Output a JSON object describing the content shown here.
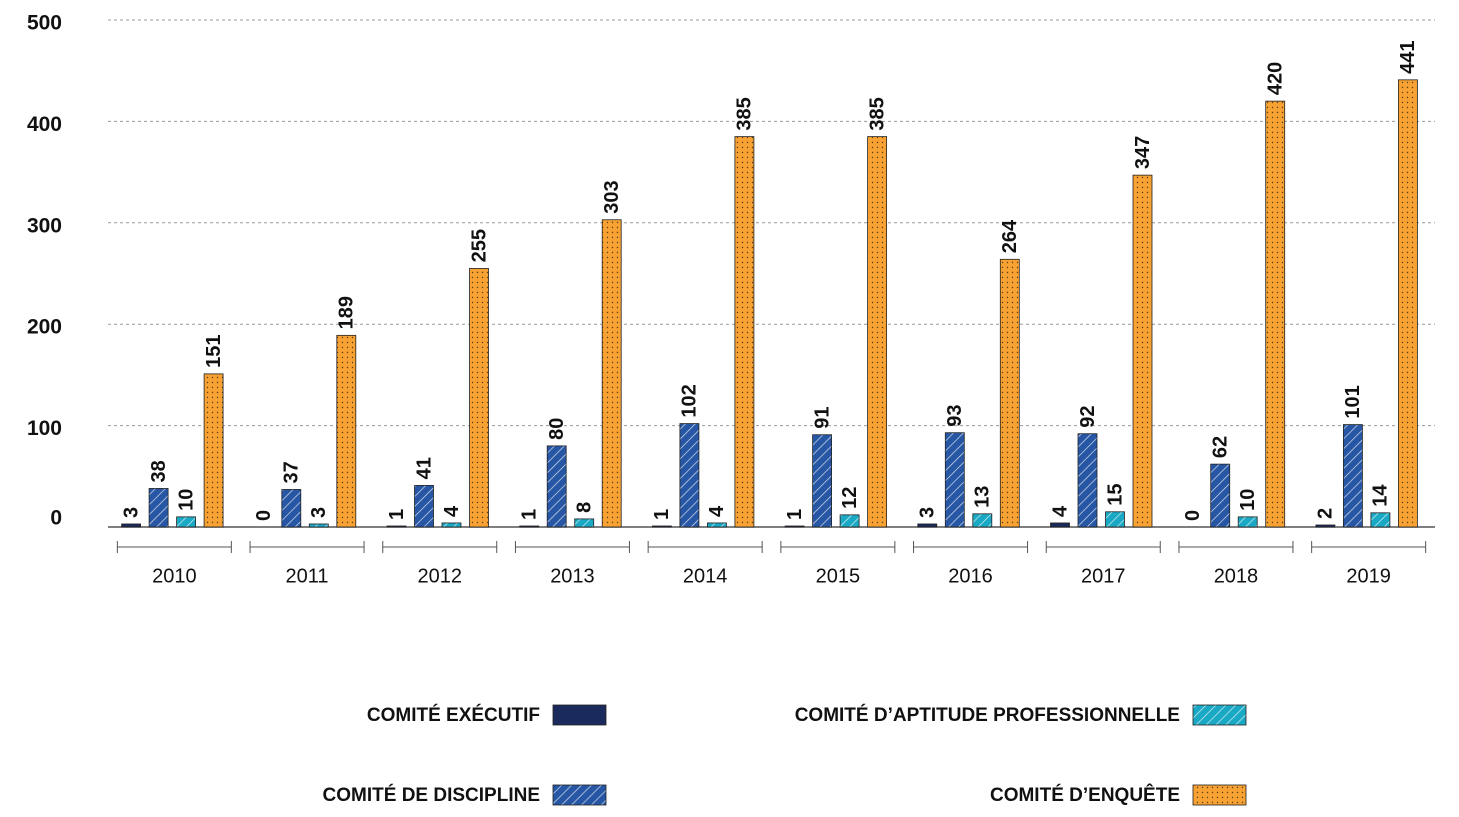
{
  "chart_data": {
    "type": "bar",
    "categories": [
      "2010",
      "2011",
      "2012",
      "2013",
      "2014",
      "2015",
      "2016",
      "2017",
      "2018",
      "2019"
    ],
    "series": [
      {
        "name": "COMITÉ EXÉCUTIF",
        "color": "#1b2a5c",
        "pattern": "solid",
        "values": [
          3,
          0,
          1,
          1,
          1,
          1,
          3,
          4,
          0,
          2
        ]
      },
      {
        "name": "COMITÉ DE DISCIPLINE",
        "color": "#2757a4",
        "pattern": "hatch",
        "values": [
          38,
          37,
          41,
          80,
          102,
          91,
          93,
          92,
          62,
          101
        ]
      },
      {
        "name": "COMITÉ D’APTITUDE PROFESSIONNELLE",
        "color": "#1aa9c4",
        "pattern": "hatch",
        "values": [
          10,
          3,
          4,
          8,
          4,
          12,
          13,
          15,
          10,
          14
        ]
      },
      {
        "name": "COMITÉ D’ENQUÊTE",
        "color": "#f7a233",
        "pattern": "dots",
        "values": [
          151,
          189,
          255,
          303,
          385,
          385,
          264,
          347,
          420,
          441
        ]
      }
    ],
    "ylim": [
      0,
      500
    ],
    "yticks": [
      0,
      100,
      200,
      300,
      400,
      500
    ],
    "grid": true
  }
}
